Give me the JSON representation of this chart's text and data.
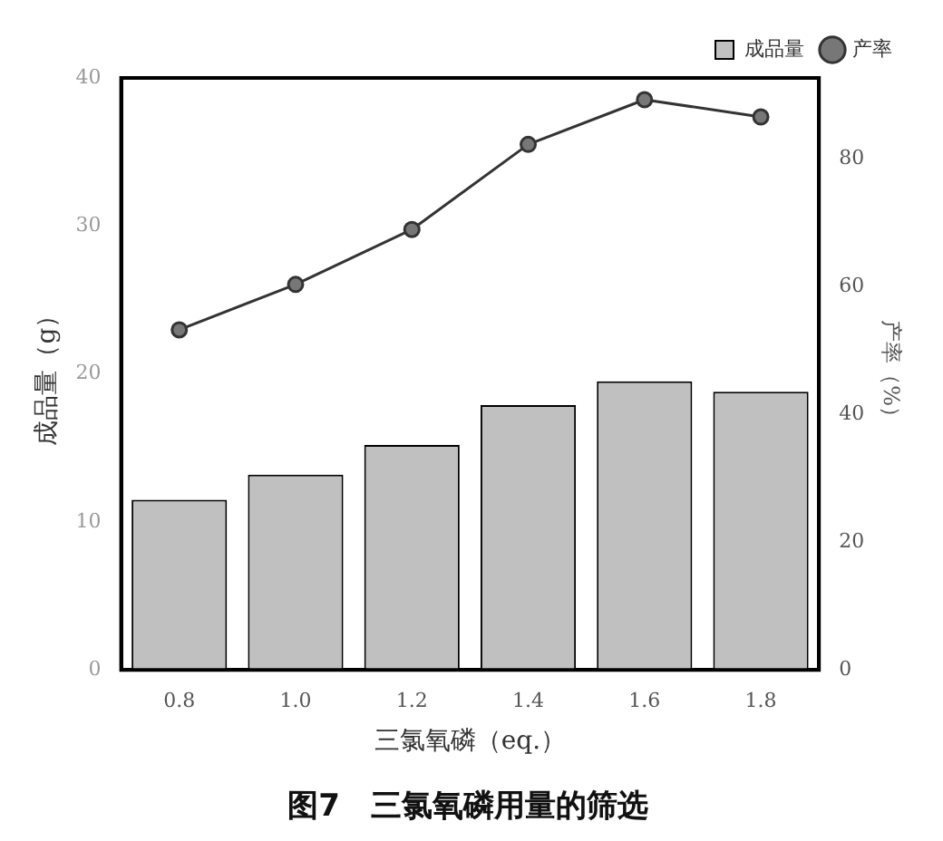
{
  "chart_data": {
    "type": "bar",
    "title": "图7　三氯氧磷用量的筛选",
    "xlabel": "三氯氧磷（eq.）",
    "ylabel": "成品量（g）",
    "y2label": "产率（%）",
    "categories": [
      "0.8",
      "1.0",
      "1.2",
      "1.4",
      "1.6",
      "1.8"
    ],
    "series": [
      {
        "name": "成品量",
        "color": "#c0c0c0",
        "values": [
          11.5,
          13.2,
          15.2,
          17.9,
          19.5,
          18.8
        ]
      },
      {
        "name": "产率",
        "type": "line",
        "axis": "y2",
        "color": "#333333",
        "values": [
          53.2,
          60.3,
          68.9,
          82.2,
          89.2,
          86.5
        ]
      }
    ],
    "ylim": [
      0,
      40
    ],
    "yticks": [
      0,
      10,
      20,
      30,
      40
    ],
    "y2lim": [
      0,
      92.6
    ],
    "y2ticks": [
      0,
      20,
      40,
      60,
      80
    ],
    "grid": false,
    "legend": "top right",
    "marker": "circle",
    "line_style": "solid"
  }
}
